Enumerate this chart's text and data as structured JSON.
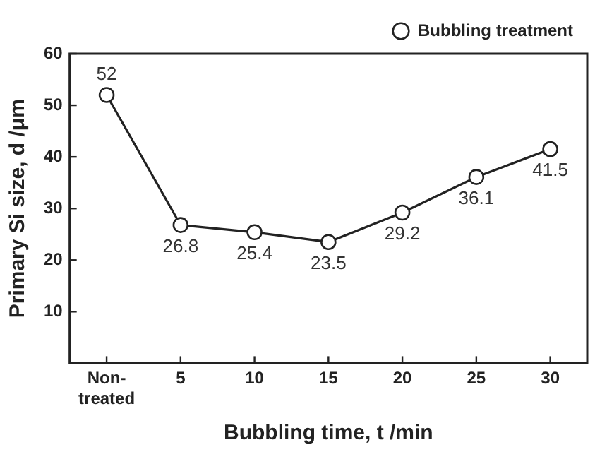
{
  "chart_data": {
    "type": "line",
    "xlabel": "Bubbling time, t /min",
    "ylabel": "Primary Si size, d /μm",
    "categories": [
      "Non-treated",
      "5",
      "10",
      "15",
      "20",
      "25",
      "30"
    ],
    "series": [
      {
        "name": "Bubbling treatment",
        "color": "#222222",
        "values": [
          52,
          26.8,
          25.4,
          23.5,
          29.2,
          36.1,
          41.5
        ]
      }
    ],
    "ylim": [
      0,
      60
    ],
    "yticks": [
      10,
      20,
      30,
      40,
      50,
      60
    ],
    "grid": false,
    "legend": "top right",
    "marker": "circle",
    "line_style": "solid",
    "data_labels": true
  }
}
